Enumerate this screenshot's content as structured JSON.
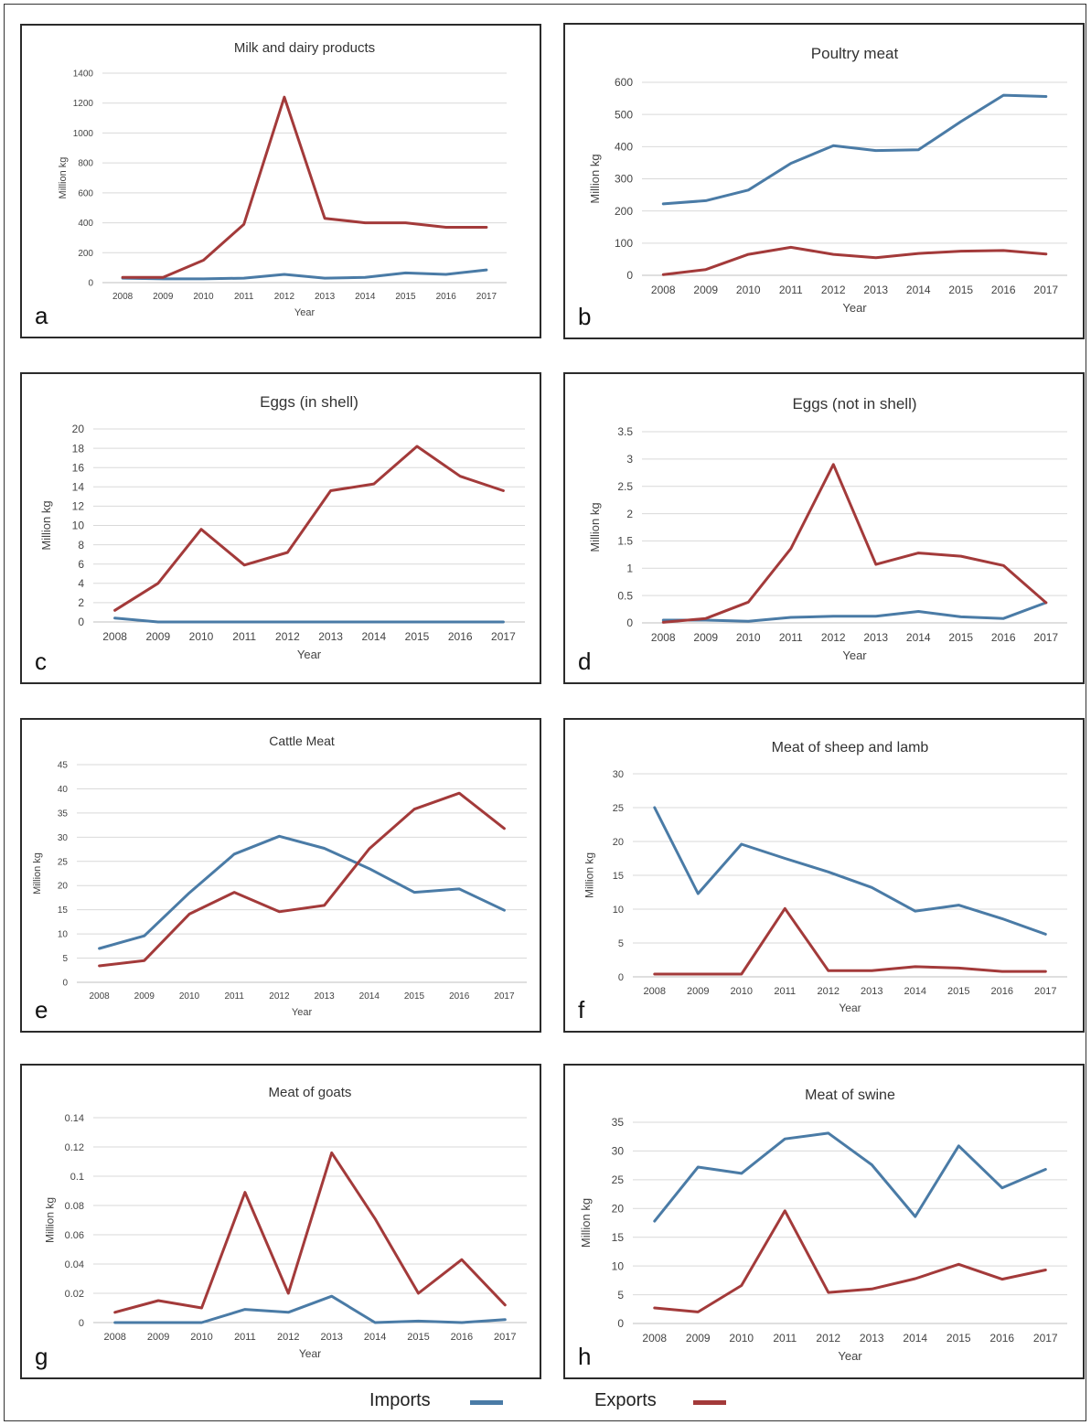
{
  "years": [
    "2008",
    "2009",
    "2010",
    "2011",
    "2012",
    "2013",
    "2014",
    "2015",
    "2016",
    "2017"
  ],
  "colors": {
    "imports": "#4a7ba6",
    "exports": "#a33a3a",
    "grid": "#d9d9d9"
  },
  "legend": {
    "imports_label": "Imports",
    "exports_label": "Exports"
  },
  "chart_data": [
    {
      "id": "a",
      "type": "line",
      "title": "Milk and dairy products",
      "xlabel": "Year",
      "ylabel": "Million kg",
      "panel_letter": "a",
      "ylim": [
        0,
        1400
      ],
      "yticks": [
        "0",
        "200",
        "400",
        "600",
        "800",
        "1000",
        "1200",
        "1400"
      ],
      "categories": [
        "2008",
        "2009",
        "2010",
        "2011",
        "2012",
        "2013",
        "2014",
        "2015",
        "2016",
        "2017"
      ],
      "series": [
        {
          "name": "Imports",
          "values": [
            30,
            25,
            25,
            30,
            55,
            30,
            35,
            65,
            55,
            85
          ]
        },
        {
          "name": "Exports",
          "values": [
            35,
            35,
            150,
            390,
            1240,
            430,
            400,
            400,
            370,
            370
          ]
        }
      ]
    },
    {
      "id": "b",
      "type": "line",
      "title": "Poultry meat",
      "xlabel": "Year",
      "ylabel": "Million kg",
      "panel_letter": "b",
      "ylim": [
        0,
        600
      ],
      "yticks": [
        "0",
        "100",
        "200",
        "300",
        "400",
        "500",
        "600"
      ],
      "categories": [
        "2008",
        "2009",
        "2010",
        "2011",
        "2012",
        "2013",
        "2014",
        "2015",
        "2016",
        "2017"
      ],
      "series": [
        {
          "name": "Imports",
          "values": [
            222,
            232,
            265,
            348,
            403,
            388,
            390,
            478,
            560,
            556
          ]
        },
        {
          "name": "Exports",
          "values": [
            2,
            18,
            65,
            87,
            65,
            55,
            68,
            75,
            77,
            66
          ]
        }
      ]
    },
    {
      "id": "c",
      "type": "line",
      "title": "Eggs (in shell)",
      "xlabel": "Year",
      "ylabel": "Million kg",
      "panel_letter": "c",
      "ylim": [
        0,
        20
      ],
      "yticks": [
        "0",
        "2",
        "4",
        "6",
        "8",
        "10",
        "12",
        "14",
        "16",
        "18",
        "20"
      ],
      "categories": [
        "2008",
        "2009",
        "2010",
        "2011",
        "2012",
        "2013",
        "2014",
        "2015",
        "2016",
        "2017"
      ],
      "series": [
        {
          "name": "Imports",
          "values": [
            0.4,
            0,
            0,
            0,
            0,
            0,
            0,
            0,
            0,
            0
          ]
        },
        {
          "name": "Exports",
          "values": [
            1.2,
            4.0,
            9.6,
            5.9,
            7.2,
            13.6,
            14.3,
            18.2,
            15.1,
            13.6
          ]
        }
      ]
    },
    {
      "id": "d",
      "type": "line",
      "title": "Eggs (not in shell)",
      "xlabel": "Year",
      "ylabel": "Million kg",
      "panel_letter": "d",
      "ylim": [
        0,
        3.5
      ],
      "yticks": [
        "0",
        "0.5",
        "1",
        "1.5",
        "2",
        "2.5",
        "3",
        "3.5"
      ],
      "categories": [
        "2008",
        "2009",
        "2010",
        "2011",
        "2012",
        "2013",
        "2014",
        "2015",
        "2016",
        "2017"
      ],
      "series": [
        {
          "name": "Imports",
          "values": [
            0.05,
            0.05,
            0.03,
            0.1,
            0.12,
            0.12,
            0.21,
            0.11,
            0.08,
            0.37
          ]
        },
        {
          "name": "Exports",
          "values": [
            0.01,
            0.08,
            0.38,
            1.36,
            2.9,
            1.07,
            1.28,
            1.22,
            1.05,
            0.37
          ]
        }
      ]
    },
    {
      "id": "e",
      "type": "line",
      "title": "Cattle Meat",
      "xlabel": "Year",
      "ylabel": "Million kg",
      "panel_letter": "e",
      "ylim": [
        0,
        45
      ],
      "yticks": [
        "0",
        "5",
        "10",
        "15",
        "20",
        "25",
        "30",
        "35",
        "40",
        "45"
      ],
      "categories": [
        "2008",
        "2009",
        "2010",
        "2011",
        "2012",
        "2013",
        "2014",
        "2015",
        "2016",
        "2017"
      ],
      "series": [
        {
          "name": "Imports",
          "values": [
            7.0,
            9.6,
            18.5,
            26.5,
            30.2,
            27.7,
            23.5,
            18.6,
            19.3,
            14.9
          ]
        },
        {
          "name": "Exports",
          "values": [
            3.4,
            4.5,
            14.1,
            18.6,
            14.6,
            15.9,
            27.6,
            35.8,
            39.1,
            31.8
          ]
        }
      ]
    },
    {
      "id": "f",
      "type": "line",
      "title": "Meat of sheep and lamb",
      "xlabel": "Year",
      "ylabel": "Million kg",
      "panel_letter": "f",
      "ylim": [
        0,
        30
      ],
      "yticks": [
        "0",
        "5",
        "10",
        "15",
        "20",
        "25",
        "30"
      ],
      "categories": [
        "2008",
        "2009",
        "2010",
        "2011",
        "2012",
        "2013",
        "2014",
        "2015",
        "2016",
        "2017"
      ],
      "series": [
        {
          "name": "Imports",
          "values": [
            25.0,
            12.3,
            19.6,
            17.5,
            15.5,
            13.2,
            9.7,
            10.6,
            8.6,
            6.3
          ]
        },
        {
          "name": "Exports",
          "values": [
            0.4,
            0.4,
            0.4,
            10.1,
            0.9,
            0.9,
            1.5,
            1.3,
            0.8,
            0.8
          ]
        }
      ]
    },
    {
      "id": "g",
      "type": "line",
      "title": "Meat of goats",
      "xlabel": "Year",
      "ylabel": "Million kg",
      "panel_letter": "g",
      "ylim": [
        0,
        0.14
      ],
      "yticks": [
        "0",
        "0.02",
        "0.04",
        "0.06",
        "0.08",
        "0.1",
        "0.12",
        "0.14"
      ],
      "categories": [
        "2008",
        "2009",
        "2010",
        "2011",
        "2012",
        "2013",
        "2014",
        "2015",
        "2016",
        "2017"
      ],
      "series": [
        {
          "name": "Imports",
          "values": [
            0.0,
            0.0,
            0.0,
            0.009,
            0.007,
            0.018,
            0.0,
            0.001,
            0.0,
            0.002
          ]
        },
        {
          "name": "Exports",
          "values": [
            0.007,
            0.015,
            0.01,
            0.089,
            0.02,
            0.116,
            0.071,
            0.02,
            0.043,
            0.012
          ]
        }
      ]
    },
    {
      "id": "h",
      "type": "line",
      "title": "Meat of swine",
      "xlabel": "Year",
      "ylabel": "Million kg",
      "panel_letter": "h",
      "ylim": [
        0,
        35
      ],
      "yticks": [
        "0",
        "5",
        "10",
        "15",
        "20",
        "25",
        "30",
        "35"
      ],
      "categories": [
        "2008",
        "2009",
        "2010",
        "2011",
        "2012",
        "2013",
        "2014",
        "2015",
        "2016",
        "2017"
      ],
      "series": [
        {
          "name": "Imports",
          "values": [
            17.8,
            27.2,
            26.1,
            32.1,
            33.1,
            27.6,
            18.6,
            30.9,
            23.6,
            26.8
          ]
        },
        {
          "name": "Exports",
          "values": [
            2.7,
            2.0,
            6.6,
            19.6,
            5.4,
            6.0,
            7.8,
            10.3,
            7.7,
            9.3
          ]
        }
      ]
    }
  ]
}
